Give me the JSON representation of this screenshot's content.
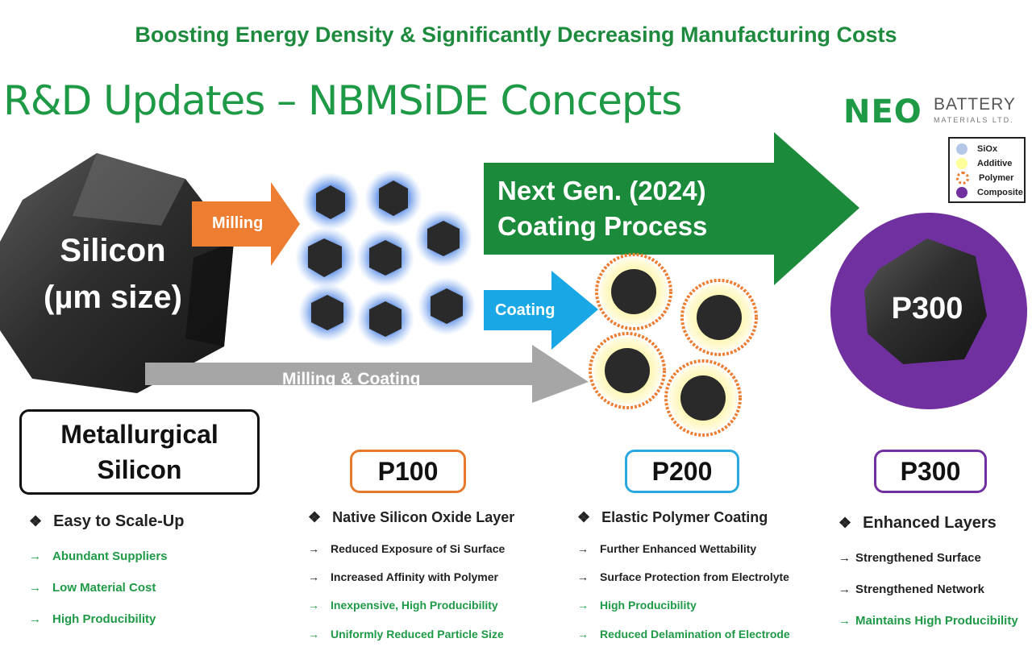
{
  "headline": "Boosting Energy Density & Significantly Decreasing Manufacturing Costs",
  "title": "R&D Updates – NBMSiDE Concepts",
  "logo": {
    "brand": "NEO",
    "line1": "BATTERY",
    "line2": "MATERIALS LTD."
  },
  "legend": [
    {
      "label": "SiOx",
      "color": "#b4c7e7"
    },
    {
      "label": "Additive",
      "color": "#ffff99"
    },
    {
      "label": "Polymer",
      "color": "#ed7d31"
    },
    {
      "label": "Composite",
      "color": "#7030a0"
    }
  ],
  "diagram": {
    "silicon_line1": "Silicon",
    "silicon_line2": "(µm size)",
    "milling": "Milling",
    "coating": "Coating",
    "milling_coating": "Milling & Coating",
    "nextgen_line1": "Next Gen. (2024)",
    "nextgen_line2": "Coating Process",
    "p300_circle": "P300"
  },
  "columns": {
    "metallurgical": {
      "title_line1": "Metallurgical",
      "title_line2": "Silicon",
      "heading": "Easy to Scale-Up",
      "items": [
        "Abundant Suppliers",
        "Low Material Cost",
        "High Producibility"
      ]
    },
    "p100": {
      "title": "P100",
      "heading": "Native Silicon Oxide Layer",
      "items": [
        "Reduced Exposure of Si Surface",
        "Increased Affinity with Polymer",
        "Inexpensive, High Producibility",
        "Uniformly Reduced Particle Size"
      ]
    },
    "p200": {
      "title": "P200",
      "heading": "Elastic Polymer Coating",
      "items": [
        "Further Enhanced Wettability",
        "Surface Protection from Electrolyte",
        "High Producibility",
        "Reduced Delamination of Electrode"
      ]
    },
    "p300": {
      "title": "P300",
      "heading": "Enhanced Layers",
      "items": [
        "Strengthened Surface",
        "Strengthened Network",
        "Maintains High Producibility"
      ]
    }
  },
  "colors": {
    "green": "#1e9a46",
    "orange": "#ed7d31",
    "blue": "#1aa7e6",
    "gray": "#a6a6a6",
    "purple": "#7030a0"
  }
}
